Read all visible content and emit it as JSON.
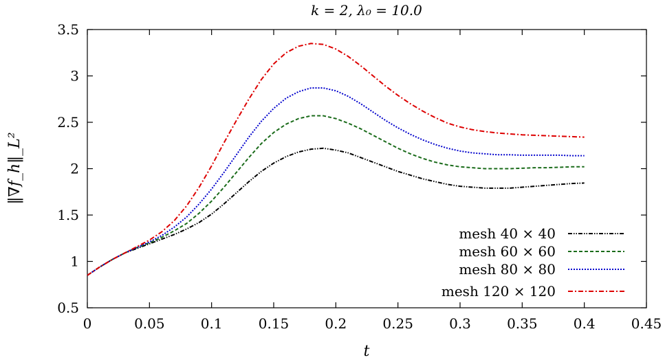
{
  "chart_data": {
    "type": "line",
    "title": "k = 2, λ₀ = 10.0",
    "xlabel": "t",
    "ylabel": "‖∇f_h‖_L²",
    "xlim": [
      0,
      0.45
    ],
    "ylim": [
      0.5,
      3.5
    ],
    "xticks": [
      "0",
      "0.05",
      "0.1",
      "0.15",
      "0.2",
      "0.25",
      "0.3",
      "0.35",
      "0.4",
      "0.45"
    ],
    "yticks": [
      "0.5",
      "1",
      "1.5",
      "2",
      "2.5",
      "3",
      "3.5"
    ],
    "legend_position": "bottom-right",
    "series": [
      {
        "name": "mesh 40 × 40",
        "color": "#000000",
        "dash": "dash-dot-dot",
        "x": [
          0,
          0.01,
          0.02,
          0.03,
          0.04,
          0.05,
          0.06,
          0.07,
          0.08,
          0.09,
          0.1,
          0.11,
          0.12,
          0.13,
          0.14,
          0.15,
          0.16,
          0.17,
          0.18,
          0.19,
          0.2,
          0.21,
          0.22,
          0.23,
          0.24,
          0.25,
          0.26,
          0.27,
          0.28,
          0.29,
          0.3,
          0.31,
          0.32,
          0.33,
          0.34,
          0.35,
          0.36,
          0.37,
          0.38,
          0.39,
          0.4
        ],
        "y": [
          0.85,
          0.94,
          1.02,
          1.09,
          1.14,
          1.19,
          1.24,
          1.29,
          1.35,
          1.42,
          1.51,
          1.62,
          1.74,
          1.86,
          1.97,
          2.06,
          2.13,
          2.18,
          2.21,
          2.22,
          2.2,
          2.17,
          2.12,
          2.07,
          2.02,
          1.97,
          1.93,
          1.89,
          1.86,
          1.83,
          1.81,
          1.8,
          1.79,
          1.79,
          1.79,
          1.8,
          1.81,
          1.82,
          1.83,
          1.84,
          1.845
        ]
      },
      {
        "name": "mesh 60 × 60",
        "color": "#1a6b1a",
        "dash": "dashed",
        "x": [
          0,
          0.01,
          0.02,
          0.03,
          0.04,
          0.05,
          0.06,
          0.07,
          0.08,
          0.09,
          0.1,
          0.11,
          0.12,
          0.13,
          0.14,
          0.15,
          0.16,
          0.17,
          0.18,
          0.19,
          0.2,
          0.21,
          0.22,
          0.23,
          0.24,
          0.25,
          0.26,
          0.27,
          0.28,
          0.29,
          0.3,
          0.31,
          0.32,
          0.33,
          0.34,
          0.35,
          0.36,
          0.37,
          0.38,
          0.39,
          0.4
        ],
        "y": [
          0.85,
          0.94,
          1.02,
          1.09,
          1.15,
          1.2,
          1.26,
          1.33,
          1.41,
          1.52,
          1.65,
          1.8,
          1.96,
          2.12,
          2.27,
          2.39,
          2.48,
          2.54,
          2.57,
          2.57,
          2.54,
          2.49,
          2.43,
          2.36,
          2.29,
          2.22,
          2.16,
          2.11,
          2.07,
          2.04,
          2.02,
          2.01,
          2.0,
          2.0,
          2.0,
          2.005,
          2.01,
          2.01,
          2.015,
          2.02,
          2.02
        ]
      },
      {
        "name": "mesh 80 × 80",
        "color": "#0000cc",
        "dash": "dotted",
        "x": [
          0,
          0.01,
          0.02,
          0.03,
          0.04,
          0.05,
          0.06,
          0.07,
          0.08,
          0.09,
          0.1,
          0.11,
          0.12,
          0.13,
          0.14,
          0.15,
          0.16,
          0.17,
          0.18,
          0.19,
          0.2,
          0.21,
          0.22,
          0.23,
          0.24,
          0.25,
          0.26,
          0.27,
          0.28,
          0.29,
          0.3,
          0.31,
          0.32,
          0.33,
          0.34,
          0.35,
          0.36,
          0.37,
          0.38,
          0.39,
          0.4
        ],
        "y": [
          0.85,
          0.94,
          1.02,
          1.09,
          1.15,
          1.21,
          1.28,
          1.37,
          1.48,
          1.62,
          1.78,
          1.96,
          2.15,
          2.34,
          2.51,
          2.65,
          2.76,
          2.83,
          2.87,
          2.87,
          2.84,
          2.78,
          2.7,
          2.61,
          2.52,
          2.44,
          2.37,
          2.31,
          2.26,
          2.22,
          2.19,
          2.17,
          2.16,
          2.15,
          2.15,
          2.145,
          2.145,
          2.145,
          2.145,
          2.14,
          2.14
        ]
      },
      {
        "name": "mesh 120 × 120",
        "color": "#dd0000",
        "dash": "dash-dot",
        "x": [
          0,
          0.01,
          0.02,
          0.03,
          0.04,
          0.05,
          0.06,
          0.07,
          0.08,
          0.09,
          0.1,
          0.11,
          0.12,
          0.13,
          0.14,
          0.15,
          0.16,
          0.17,
          0.18,
          0.19,
          0.2,
          0.21,
          0.22,
          0.23,
          0.24,
          0.25,
          0.26,
          0.27,
          0.28,
          0.29,
          0.3,
          0.31,
          0.32,
          0.33,
          0.34,
          0.35,
          0.36,
          0.37,
          0.38,
          0.39,
          0.4
        ],
        "y": [
          0.85,
          0.94,
          1.02,
          1.09,
          1.16,
          1.23,
          1.32,
          1.44,
          1.6,
          1.8,
          2.03,
          2.28,
          2.52,
          2.75,
          2.96,
          3.13,
          3.25,
          3.32,
          3.35,
          3.34,
          3.29,
          3.21,
          3.11,
          3.0,
          2.89,
          2.79,
          2.7,
          2.62,
          2.55,
          2.49,
          2.45,
          2.42,
          2.4,
          2.385,
          2.375,
          2.365,
          2.36,
          2.355,
          2.35,
          2.345,
          2.34
        ]
      }
    ]
  }
}
